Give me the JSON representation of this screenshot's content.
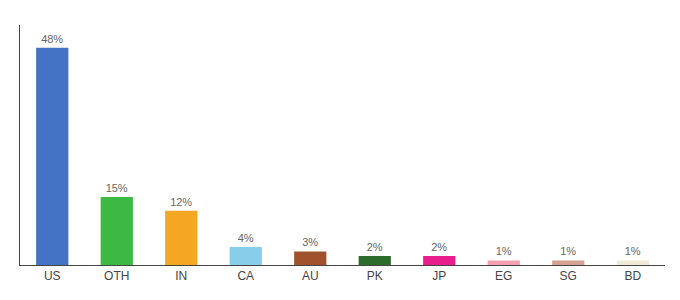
{
  "chart_data": {
    "type": "bar",
    "categories": [
      "US",
      "OTH",
      "IN",
      "CA",
      "AU",
      "PK",
      "JP",
      "EG",
      "SG",
      "BD"
    ],
    "values": [
      48,
      15,
      12,
      4,
      3,
      2,
      2,
      1,
      1,
      1
    ],
    "value_labels": [
      "48%",
      "15%",
      "12%",
      "4%",
      "3%",
      "2%",
      "2%",
      "1%",
      "1%",
      "1%"
    ],
    "colors": [
      "#4472c4",
      "#3cb943",
      "#f5a623",
      "#87ceeb",
      "#a0522d",
      "#2d6b2d",
      "#e91e8c",
      "#f4a0b0",
      "#d4a090",
      "#f0ead6"
    ],
    "ylim": [
      0,
      53
    ],
    "grid": false,
    "data_labels": true,
    "tick_labels": "x"
  }
}
